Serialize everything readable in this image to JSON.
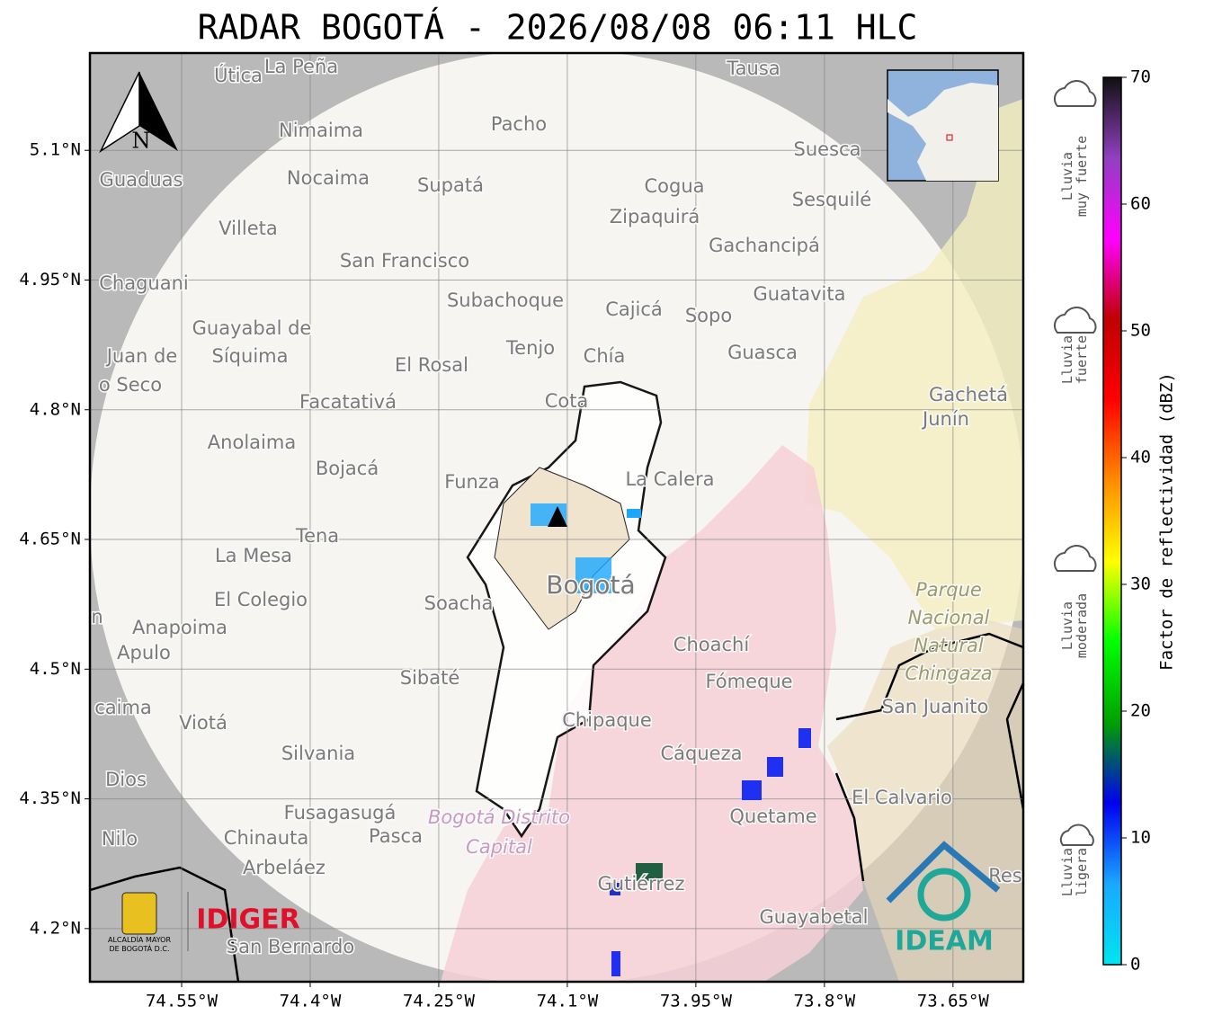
{
  "title": "RADAR BOGOTÁ - 2026/08/08 06:11 HLC",
  "map": {
    "lonlim": [
      -74.657,
      -73.568
    ],
    "latlim": [
      4.1385,
      5.2125
    ],
    "lon_ticks": [
      {
        "value": -74.55,
        "label": "74.55°W"
      },
      {
        "value": -74.4,
        "label": "74.4°W"
      },
      {
        "value": -74.25,
        "label": "74.25°W"
      },
      {
        "value": -74.1,
        "label": "74.1°W"
      },
      {
        "value": -73.95,
        "label": "73.95°W"
      },
      {
        "value": -73.8,
        "label": "73.8°W"
      },
      {
        "value": -73.65,
        "label": "73.65°W"
      }
    ],
    "lat_ticks": [
      {
        "value": 5.1,
        "label": "5.1°N"
      },
      {
        "value": 4.95,
        "label": "4.95°N"
      },
      {
        "value": 4.8,
        "label": "4.8°N"
      },
      {
        "value": 4.65,
        "label": "4.65°N"
      },
      {
        "value": 4.5,
        "label": "4.5°N"
      },
      {
        "value": 4.35,
        "label": "4.35°N"
      },
      {
        "value": 4.2,
        "label": "4.2°N"
      }
    ],
    "places": [
      "Útica",
      "La Peña",
      "Tausa",
      "Pacho",
      "Nimaima",
      "Guaduas",
      "Nocaima",
      "Supatá",
      "Cogua",
      "Suesca",
      "Sesquilé",
      "Zipaquirá",
      "Villeta",
      "Gachancipá",
      "San Francisco",
      "Chaguani",
      "Guatavita",
      "Subachoque",
      "Cajicá",
      "Sopo",
      "Guayabal de",
      "Síquima",
      "Juan de",
      "o Seco",
      "Tenjo",
      "Chía",
      "Guasca",
      "El Rosal",
      "Facatativá",
      "Cota",
      "Gachetá",
      "Junín",
      "Anolaima",
      "Bojacá",
      "Funza",
      "La Calera",
      "Tena",
      "La Mesa",
      "Soacha",
      "El Colegio",
      "Anapoima",
      "Apulo",
      "Choachí",
      "Sibaté",
      "Fómeque",
      "San Juanito",
      "caima",
      "Viotá",
      "Chipaque",
      "Silvania",
      "Cáqueza",
      "Dios",
      "El Calvario",
      "Fusagasugá",
      "Quetame",
      "Nilo",
      "Chinauta",
      "Pasca",
      "Arbeláez",
      "Gutiérrez",
      "Res",
      "Guayabetal",
      "San Bernardo",
      "n"
    ],
    "city": "Bogotá",
    "district": [
      "Bogotá Distrito",
      "Capital"
    ],
    "park": [
      "Parque",
      "Nacional",
      "Natural",
      "Chingaza"
    ],
    "north": "N"
  },
  "logos": {
    "alcaldia": [
      "ALCALDÍA MAYOR",
      "DE BOGOTÁ D.C."
    ],
    "idiger": "IDIGER",
    "ideam": "IDEAM"
  },
  "colorbar": {
    "label": "Factor de reflectividad (dBZ)",
    "lim": [
      0,
      70
    ],
    "ticks": [
      0,
      10,
      20,
      30,
      40,
      50,
      60,
      70
    ],
    "colors": [
      "#00e5f0",
      "#1aa8ff",
      "#0000f0",
      "#00a000",
      "#00ff00",
      "#ffff00",
      "#ff8c00",
      "#ff0000",
      "#c00000",
      "#ff00ff",
      "#9040c0",
      "#101010"
    ],
    "intensity": [
      [
        "Lluvia",
        "muy fuerte"
      ],
      [
        "Lluvia",
        "fuerte"
      ],
      [
        "Lluvia",
        "moderada"
      ],
      [
        "Lluvia",
        "ligera"
      ]
    ]
  }
}
